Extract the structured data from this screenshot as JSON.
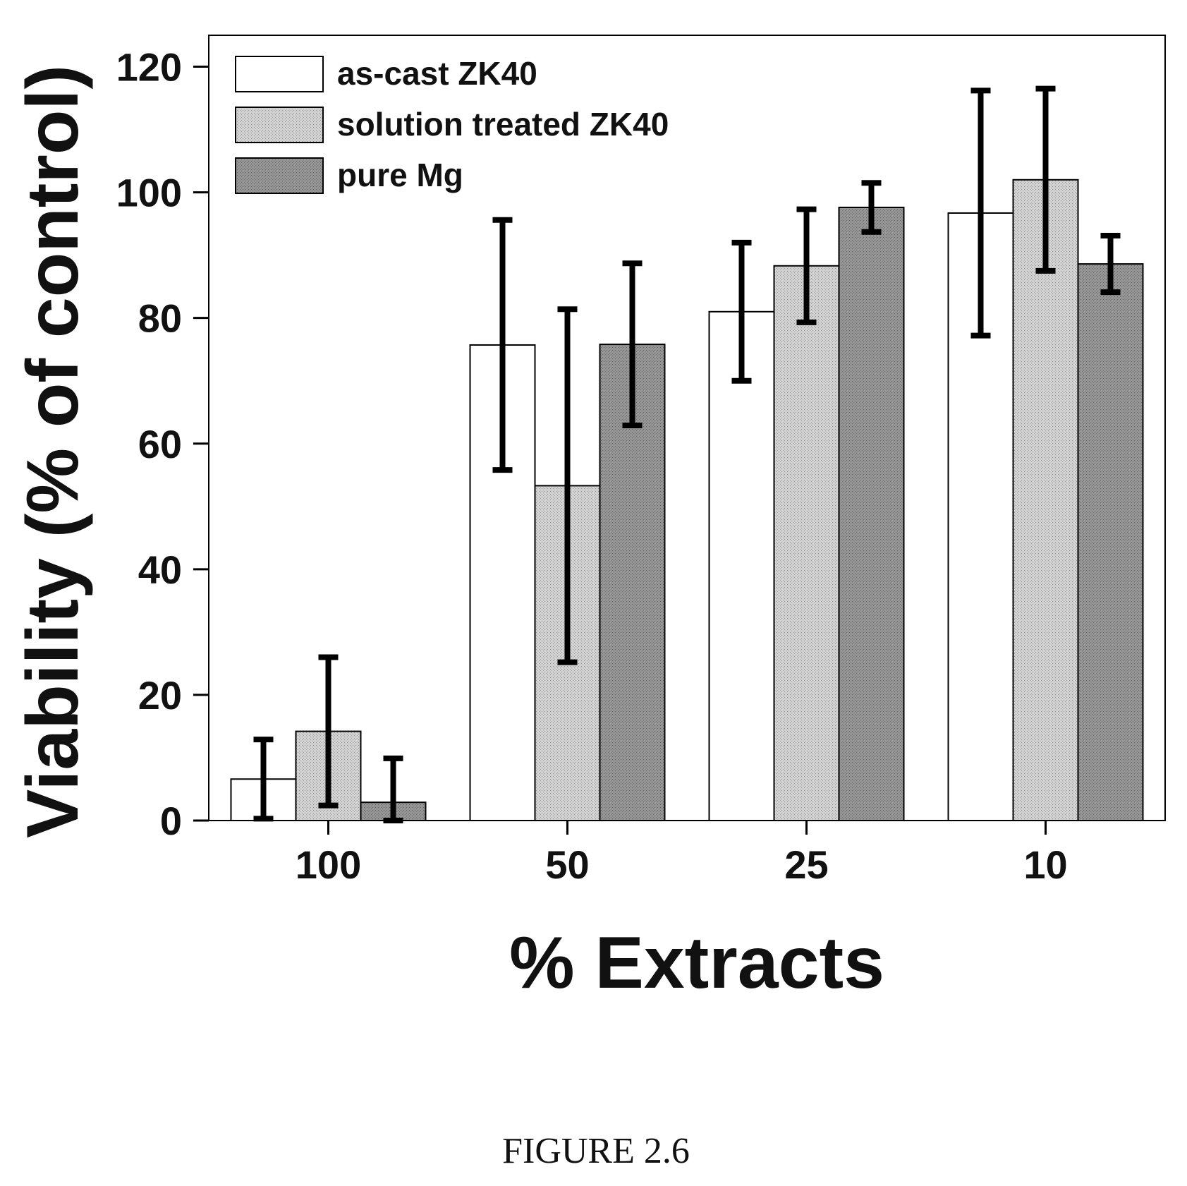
{
  "chart_data": {
    "type": "bar",
    "xlabel": "% Extracts",
    "ylabel": "Viability (% of control)",
    "categories": [
      "100",
      "50",
      "25",
      "10"
    ],
    "ylim": [
      0,
      125
    ],
    "yticks": [
      0,
      20,
      40,
      60,
      80,
      100,
      120
    ],
    "legend_position": "top-left",
    "grid": false,
    "series": [
      {
        "name": "as-cast ZK40",
        "values": [
          6.6,
          75.7,
          81.0,
          96.7
        ],
        "errors": [
          6.3,
          19.9,
          11.0,
          19.5
        ],
        "fill": "#ffffff"
      },
      {
        "name": "solution treated ZK40",
        "values": [
          14.2,
          53.3,
          88.3,
          102.0
        ],
        "errors": [
          11.8,
          28.1,
          9.0,
          14.5
        ],
        "fill": "#c4c4c4"
      },
      {
        "name": "pure Mg",
        "values": [
          2.9,
          75.8,
          97.6,
          88.6
        ],
        "errors": [
          7.0,
          12.9,
          3.9,
          4.5
        ],
        "fill": "#8c8c8c"
      }
    ]
  },
  "caption": "FIGURE 2.6"
}
